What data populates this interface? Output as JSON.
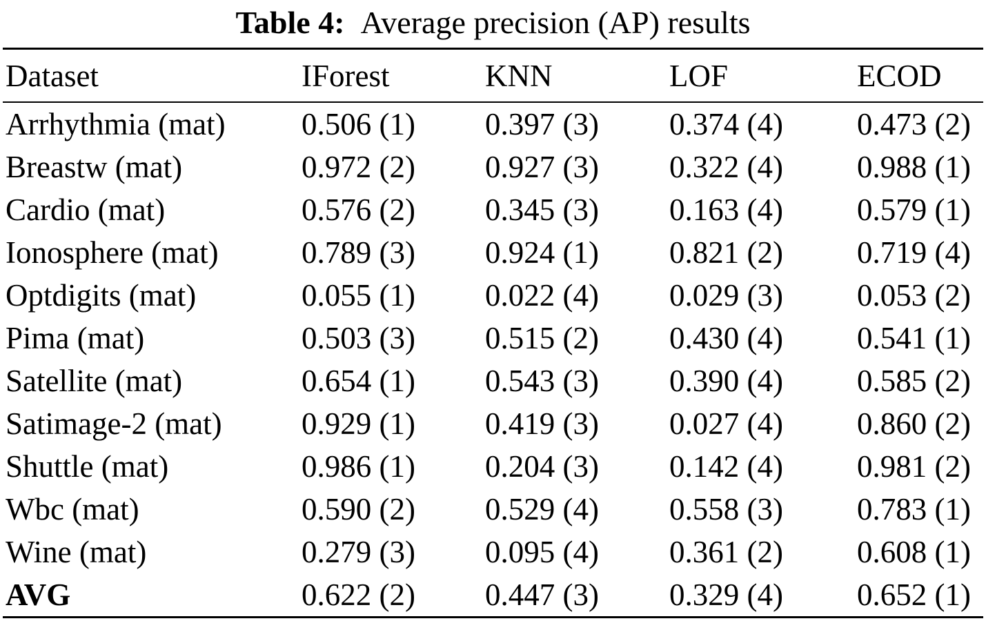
{
  "caption": {
    "label": "Table 4:",
    "text": "Average precision (AP) results"
  },
  "table": {
    "columns": [
      "Dataset",
      "IForest",
      "KNN",
      "LOF",
      "ECOD"
    ],
    "rows": [
      {
        "dataset": "Arrhythmia (mat)",
        "bold": false,
        "cells": [
          "0.506 (1)",
          "0.397 (3)",
          "0.374 (4)",
          "0.473 (2)"
        ]
      },
      {
        "dataset": "Breastw (mat)",
        "bold": false,
        "cells": [
          "0.972 (2)",
          "0.927 (3)",
          "0.322 (4)",
          "0.988 (1)"
        ]
      },
      {
        "dataset": "Cardio (mat)",
        "bold": false,
        "cells": [
          "0.576 (2)",
          "0.345 (3)",
          "0.163 (4)",
          "0.579 (1)"
        ]
      },
      {
        "dataset": "Ionosphere (mat)",
        "bold": false,
        "cells": [
          "0.789 (3)",
          "0.924 (1)",
          "0.821 (2)",
          "0.719 (4)"
        ]
      },
      {
        "dataset": "Optdigits (mat)",
        "bold": false,
        "cells": [
          "0.055 (1)",
          "0.022 (4)",
          "0.029 (3)",
          "0.053 (2)"
        ]
      },
      {
        "dataset": "Pima (mat)",
        "bold": false,
        "cells": [
          "0.503 (3)",
          "0.515 (2)",
          "0.430 (4)",
          "0.541 (1)"
        ]
      },
      {
        "dataset": "Satellite (mat)",
        "bold": false,
        "cells": [
          "0.654 (1)",
          "0.543 (3)",
          "0.390 (4)",
          "0.585 (2)"
        ]
      },
      {
        "dataset": "Satimage-2 (mat)",
        "bold": false,
        "cells": [
          "0.929 (1)",
          "0.419 (3)",
          "0.027 (4)",
          "0.860 (2)"
        ]
      },
      {
        "dataset": "Shuttle (mat)",
        "bold": false,
        "cells": [
          "0.986 (1)",
          "0.204 (3)",
          "0.142 (4)",
          "0.981 (2)"
        ]
      },
      {
        "dataset": "Wbc (mat)",
        "bold": false,
        "cells": [
          "0.590 (2)",
          "0.529 (4)",
          "0.558 (3)",
          "0.783 (1)"
        ]
      },
      {
        "dataset": "Wine (mat)",
        "bold": false,
        "cells": [
          "0.279 (3)",
          "0.095 (4)",
          "0.361 (2)",
          "0.608 (1)"
        ]
      },
      {
        "dataset": "AVG",
        "bold": true,
        "cells": [
          "0.622 (2)",
          "0.447 (3)",
          "0.329 (4)",
          "0.652 (1)"
        ]
      }
    ]
  },
  "chart_data": {
    "type": "table",
    "title": "Table 4: Average precision (AP) results",
    "columns": [
      "Dataset",
      "IForest",
      "KNN",
      "LOF",
      "ECOD"
    ],
    "datasets": [
      "Arrhythmia (mat)",
      "Breastw (mat)",
      "Cardio (mat)",
      "Ionosphere (mat)",
      "Optdigits (mat)",
      "Pima (mat)",
      "Satellite (mat)",
      "Satimage-2 (mat)",
      "Shuttle (mat)",
      "Wbc (mat)",
      "Wine (mat)",
      "AVG"
    ],
    "series": [
      {
        "name": "IForest",
        "values": [
          0.506,
          0.972,
          0.576,
          0.789,
          0.055,
          0.503,
          0.654,
          0.929,
          0.986,
          0.59,
          0.279,
          0.622
        ],
        "ranks": [
          1,
          2,
          2,
          3,
          1,
          3,
          1,
          1,
          1,
          2,
          3,
          2
        ]
      },
      {
        "name": "KNN",
        "values": [
          0.397,
          0.927,
          0.345,
          0.924,
          0.022,
          0.515,
          0.543,
          0.419,
          0.204,
          0.529,
          0.095,
          0.447
        ],
        "ranks": [
          3,
          3,
          3,
          1,
          4,
          2,
          3,
          3,
          3,
          4,
          4,
          3
        ]
      },
      {
        "name": "LOF",
        "values": [
          0.374,
          0.322,
          0.163,
          0.821,
          0.029,
          0.43,
          0.39,
          0.027,
          0.142,
          0.558,
          0.361,
          0.329
        ],
        "ranks": [
          4,
          4,
          4,
          2,
          3,
          4,
          4,
          4,
          4,
          3,
          2,
          4
        ]
      },
      {
        "name": "ECOD",
        "values": [
          0.473,
          0.988,
          0.579,
          0.719,
          0.053,
          0.541,
          0.585,
          0.86,
          0.981,
          0.783,
          0.608,
          0.652
        ],
        "ranks": [
          2,
          1,
          1,
          4,
          2,
          1,
          2,
          2,
          2,
          1,
          1,
          1
        ]
      }
    ]
  }
}
